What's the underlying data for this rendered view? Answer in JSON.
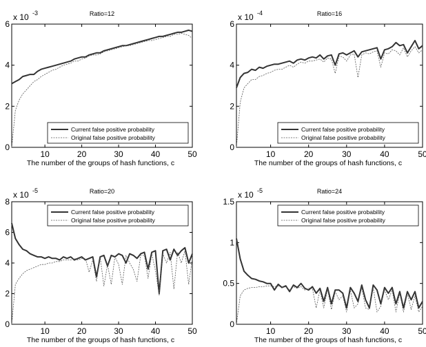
{
  "chart_data": [
    {
      "type": "line",
      "title": "Ratio=12",
      "scale_label": "x 10",
      "scale_exponent": "-3",
      "xlabel": "The number of the groups of hash functions, c",
      "xlim": [
        1,
        50
      ],
      "ylim": [
        0,
        6
      ],
      "xticks": [
        "10",
        "20",
        "30",
        "40",
        "50"
      ],
      "yticks": [
        "0",
        "2",
        "4",
        "6"
      ],
      "legend_placement": "bottom-right",
      "x": [
        1,
        2,
        3,
        4,
        5,
        6,
        7,
        8,
        9,
        10,
        11,
        12,
        13,
        14,
        15,
        16,
        17,
        18,
        19,
        20,
        21,
        22,
        23,
        24,
        25,
        26,
        27,
        28,
        29,
        30,
        31,
        32,
        33,
        34,
        35,
        36,
        37,
        38,
        39,
        40,
        41,
        42,
        43,
        44,
        45,
        46,
        47,
        48,
        49,
        50
      ],
      "series": [
        {
          "name": "Current false positive probability",
          "style": "solid-thick",
          "values": [
            3.1,
            3.2,
            3.3,
            3.45,
            3.5,
            3.55,
            3.55,
            3.7,
            3.8,
            3.85,
            3.9,
            3.95,
            4.0,
            4.05,
            4.1,
            4.15,
            4.2,
            4.3,
            4.35,
            4.4,
            4.4,
            4.5,
            4.55,
            4.6,
            4.6,
            4.7,
            4.75,
            4.8,
            4.85,
            4.9,
            4.95,
            4.95,
            5.0,
            5.05,
            5.1,
            5.15,
            5.2,
            5.25,
            5.3,
            5.35,
            5.4,
            5.4,
            5.45,
            5.5,
            5.55,
            5.6,
            5.6,
            5.65,
            5.7,
            5.65
          ]
        },
        {
          "name": "Original false positive probability",
          "style": "dashed-thin",
          "values": [
            0.0,
            1.8,
            2.3,
            2.6,
            2.8,
            3.0,
            3.2,
            3.3,
            3.45,
            3.55,
            3.65,
            3.75,
            3.8,
            3.9,
            4.0,
            4.05,
            4.1,
            4.2,
            4.2,
            4.3,
            4.35,
            4.45,
            4.5,
            4.5,
            4.55,
            4.65,
            4.7,
            4.75,
            4.8,
            4.85,
            4.9,
            4.95,
            4.95,
            5.0,
            5.05,
            5.1,
            5.15,
            5.2,
            5.2,
            5.25,
            5.3,
            5.35,
            5.4,
            5.4,
            5.5,
            5.5,
            5.55,
            5.5,
            5.45,
            5.3
          ]
        }
      ]
    },
    {
      "type": "line",
      "title": "Ratio=16",
      "scale_label": "x 10",
      "scale_exponent": "-4",
      "xlabel": "The number of the groups of hash functions, c",
      "xlim": [
        1,
        50
      ],
      "ylim": [
        0,
        6
      ],
      "xticks": [
        "10",
        "20",
        "30",
        "40",
        "50"
      ],
      "yticks": [
        "0",
        "2",
        "4",
        "6"
      ],
      "legend_placement": "bottom-right",
      "x": [
        1,
        2,
        3,
        4,
        5,
        6,
        7,
        8,
        9,
        10,
        11,
        12,
        13,
        14,
        15,
        16,
        17,
        18,
        19,
        20,
        21,
        22,
        23,
        24,
        25,
        26,
        27,
        28,
        29,
        30,
        31,
        32,
        33,
        34,
        35,
        36,
        37,
        38,
        39,
        40,
        41,
        42,
        43,
        44,
        45,
        46,
        47,
        48,
        49,
        50
      ],
      "series": [
        {
          "name": "Current false positive probability",
          "style": "solid-thick",
          "values": [
            2.9,
            3.4,
            3.6,
            3.65,
            3.8,
            3.75,
            3.9,
            3.85,
            3.95,
            4.0,
            4.05,
            4.05,
            4.1,
            4.15,
            4.2,
            4.1,
            4.25,
            4.3,
            4.25,
            4.35,
            4.4,
            4.35,
            4.5,
            4.3,
            4.45,
            4.5,
            4.0,
            4.55,
            4.6,
            4.5,
            4.6,
            4.7,
            4.4,
            4.65,
            4.7,
            4.75,
            4.8,
            4.85,
            4.3,
            4.75,
            4.8,
            4.9,
            5.1,
            4.95,
            5.0,
            4.6,
            4.9,
            5.2,
            4.8,
            4.95
          ]
        },
        {
          "name": "Original false positive probability",
          "style": "dashed-thin",
          "values": [
            0.0,
            2.2,
            2.9,
            3.1,
            3.3,
            3.3,
            3.45,
            3.5,
            3.6,
            3.65,
            3.75,
            3.8,
            3.8,
            3.9,
            4.0,
            3.9,
            4.05,
            4.15,
            4.1,
            4.2,
            4.2,
            4.25,
            4.3,
            4.15,
            4.35,
            4.3,
            3.6,
            4.45,
            4.4,
            4.2,
            4.5,
            4.55,
            3.4,
            4.5,
            4.6,
            4.55,
            4.65,
            4.7,
            3.9,
            4.6,
            4.55,
            4.75,
            4.7,
            4.5,
            4.85,
            4.4,
            4.7,
            4.9,
            4.6,
            4.75
          ]
        }
      ]
    },
    {
      "type": "line",
      "title": "Ratio=20",
      "scale_label": "x 10",
      "scale_exponent": "-5",
      "xlabel": "The number of the groups of hash functions, c",
      "xlim": [
        1,
        50
      ],
      "ylim": [
        0,
        8
      ],
      "xticks": [
        "10",
        "20",
        "30",
        "40",
        "50"
      ],
      "yticks": [
        "0",
        "2",
        "4",
        "6",
        "8"
      ],
      "legend_placement": "top-right",
      "x": [
        1,
        2,
        3,
        4,
        5,
        6,
        7,
        8,
        9,
        10,
        11,
        12,
        13,
        14,
        15,
        16,
        17,
        18,
        19,
        20,
        21,
        22,
        23,
        24,
        25,
        26,
        27,
        28,
        29,
        30,
        31,
        32,
        33,
        34,
        35,
        36,
        37,
        38,
        39,
        40,
        41,
        42,
        43,
        44,
        45,
        46,
        47,
        48,
        49,
        50
      ],
      "series": [
        {
          "name": "Current false positive probability",
          "style": "solid-thick",
          "values": [
            6.6,
            5.6,
            5.2,
            4.9,
            4.8,
            4.6,
            4.5,
            4.4,
            4.4,
            4.3,
            4.4,
            4.3,
            4.3,
            4.2,
            4.4,
            4.3,
            4.4,
            4.2,
            4.3,
            4.4,
            4.2,
            4.3,
            4.4,
            3.1,
            4.4,
            4.5,
            3.8,
            4.5,
            4.4,
            4.6,
            4.5,
            4.0,
            4.6,
            4.5,
            4.3,
            4.6,
            4.7,
            3.6,
            4.7,
            4.8,
            2.0,
            4.8,
            4.9,
            4.2,
            4.9,
            4.5,
            4.8,
            5.0,
            4.0,
            4.6
          ]
        },
        {
          "name": "Original false positive probability",
          "style": "dashed-thin",
          "values": [
            0.0,
            2.6,
            3.0,
            3.3,
            3.5,
            3.6,
            3.7,
            3.8,
            3.9,
            3.9,
            4.0,
            4.0,
            4.1,
            4.1,
            4.2,
            4.2,
            4.2,
            4.3,
            4.2,
            4.3,
            4.3,
            3.4,
            4.2,
            2.8,
            4.4,
            2.5,
            3.9,
            2.6,
            4.4,
            3.9,
            2.6,
            4.5,
            4.0,
            3.6,
            2.8,
            4.5,
            4.5,
            3.0,
            4.6,
            3.5,
            1.9,
            4.6,
            4.0,
            4.7,
            2.3,
            4.7,
            4.0,
            4.8,
            2.6,
            4.3
          ]
        }
      ]
    },
    {
      "type": "line",
      "title": "Ratio=24",
      "scale_label": "x 10",
      "scale_exponent": "-5",
      "xlabel": "The number of the groups of hash functions, c",
      "xlim": [
        1,
        50
      ],
      "ylim": [
        0,
        1.5
      ],
      "xticks": [
        "10",
        "20",
        "30",
        "40",
        "50"
      ],
      "yticks": [
        "0",
        "0.5",
        "1",
        "1.5"
      ],
      "legend_placement": "top-right",
      "x": [
        1,
        2,
        3,
        4,
        5,
        6,
        7,
        8,
        9,
        10,
        11,
        12,
        13,
        14,
        15,
        16,
        17,
        18,
        19,
        20,
        21,
        22,
        23,
        24,
        25,
        26,
        27,
        28,
        29,
        30,
        31,
        32,
        33,
        34,
        35,
        36,
        37,
        38,
        39,
        40,
        41,
        42,
        43,
        44,
        45,
        46,
        47,
        48,
        49,
        50
      ],
      "series": [
        {
          "name": "Current false positive probability",
          "style": "solid-thick",
          "values": [
            1.05,
            0.8,
            0.65,
            0.6,
            0.56,
            0.55,
            0.53,
            0.52,
            0.5,
            0.5,
            0.42,
            0.49,
            0.45,
            0.47,
            0.4,
            0.48,
            0.45,
            0.5,
            0.44,
            0.42,
            0.46,
            0.38,
            0.44,
            0.28,
            0.45,
            0.25,
            0.42,
            0.42,
            0.38,
            0.2,
            0.45,
            0.38,
            0.28,
            0.48,
            0.3,
            0.2,
            0.48,
            0.42,
            0.25,
            0.45,
            0.38,
            0.45,
            0.25,
            0.4,
            0.2,
            0.4,
            0.3,
            0.4,
            0.2,
            0.28
          ]
        },
        {
          "name": "Original false positive probability",
          "style": "dashed-thin",
          "values": [
            0.0,
            0.35,
            0.42,
            0.44,
            0.45,
            0.45,
            0.46,
            0.46,
            0.47,
            0.47,
            0.46,
            0.47,
            0.45,
            0.46,
            0.42,
            0.46,
            0.44,
            0.46,
            0.42,
            0.44,
            0.44,
            0.2,
            0.42,
            0.2,
            0.43,
            0.18,
            0.4,
            0.3,
            0.35,
            0.15,
            0.42,
            0.2,
            0.25,
            0.45,
            0.2,
            0.18,
            0.45,
            0.15,
            0.22,
            0.42,
            0.3,
            0.42,
            0.15,
            0.38,
            0.15,
            0.38,
            0.18,
            0.35,
            0.15,
            0.22
          ]
        }
      ]
    }
  ]
}
